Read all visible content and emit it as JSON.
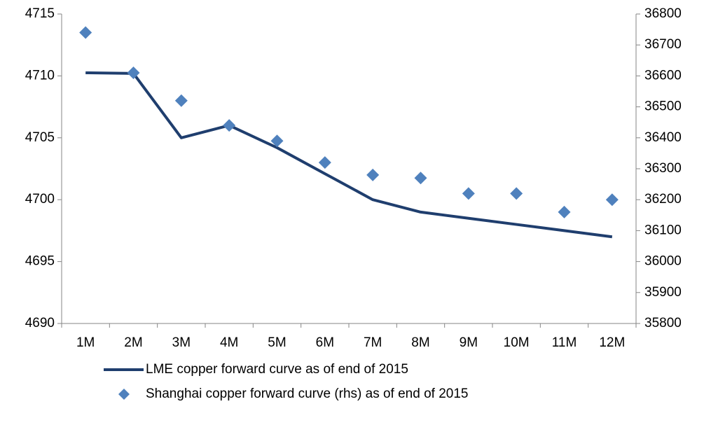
{
  "chart_data": {
    "type": "line",
    "categories": [
      "1M",
      "2M",
      "3M",
      "4M",
      "5M",
      "6M",
      "7M",
      "8M",
      "9M",
      "10M",
      "11M",
      "12M"
    ],
    "series": [
      {
        "name": "LME copper forward curve as of end of 2015",
        "color": "#1f3e6e",
        "kind": "line",
        "values": [
          4710.25,
          4710.2,
          4705.0,
          4706.0,
          4704.2,
          4702.1,
          4700.0,
          4699.0,
          4698.5,
          4698.0,
          4697.5,
          4697.0
        ]
      },
      {
        "name": "Shanghai copper forward curve (rhs) as of end of 2015",
        "color": "#4f81bd",
        "kind": "marker",
        "axis": "y2",
        "values": [
          36740,
          36610,
          36520,
          36440,
          36390,
          36320,
          36280,
          36270,
          36220,
          36220,
          36160,
          36200
        ]
      }
    ],
    "ylim": [
      4690,
      4715
    ],
    "yticks": [
      4690,
      4695,
      4700,
      4705,
      4710,
      4715
    ],
    "y2lim": [
      35800,
      36800
    ],
    "y2ticks": [
      35800,
      35900,
      36000,
      36100,
      36200,
      36300,
      36400,
      36500,
      36600,
      36700,
      36800
    ]
  }
}
